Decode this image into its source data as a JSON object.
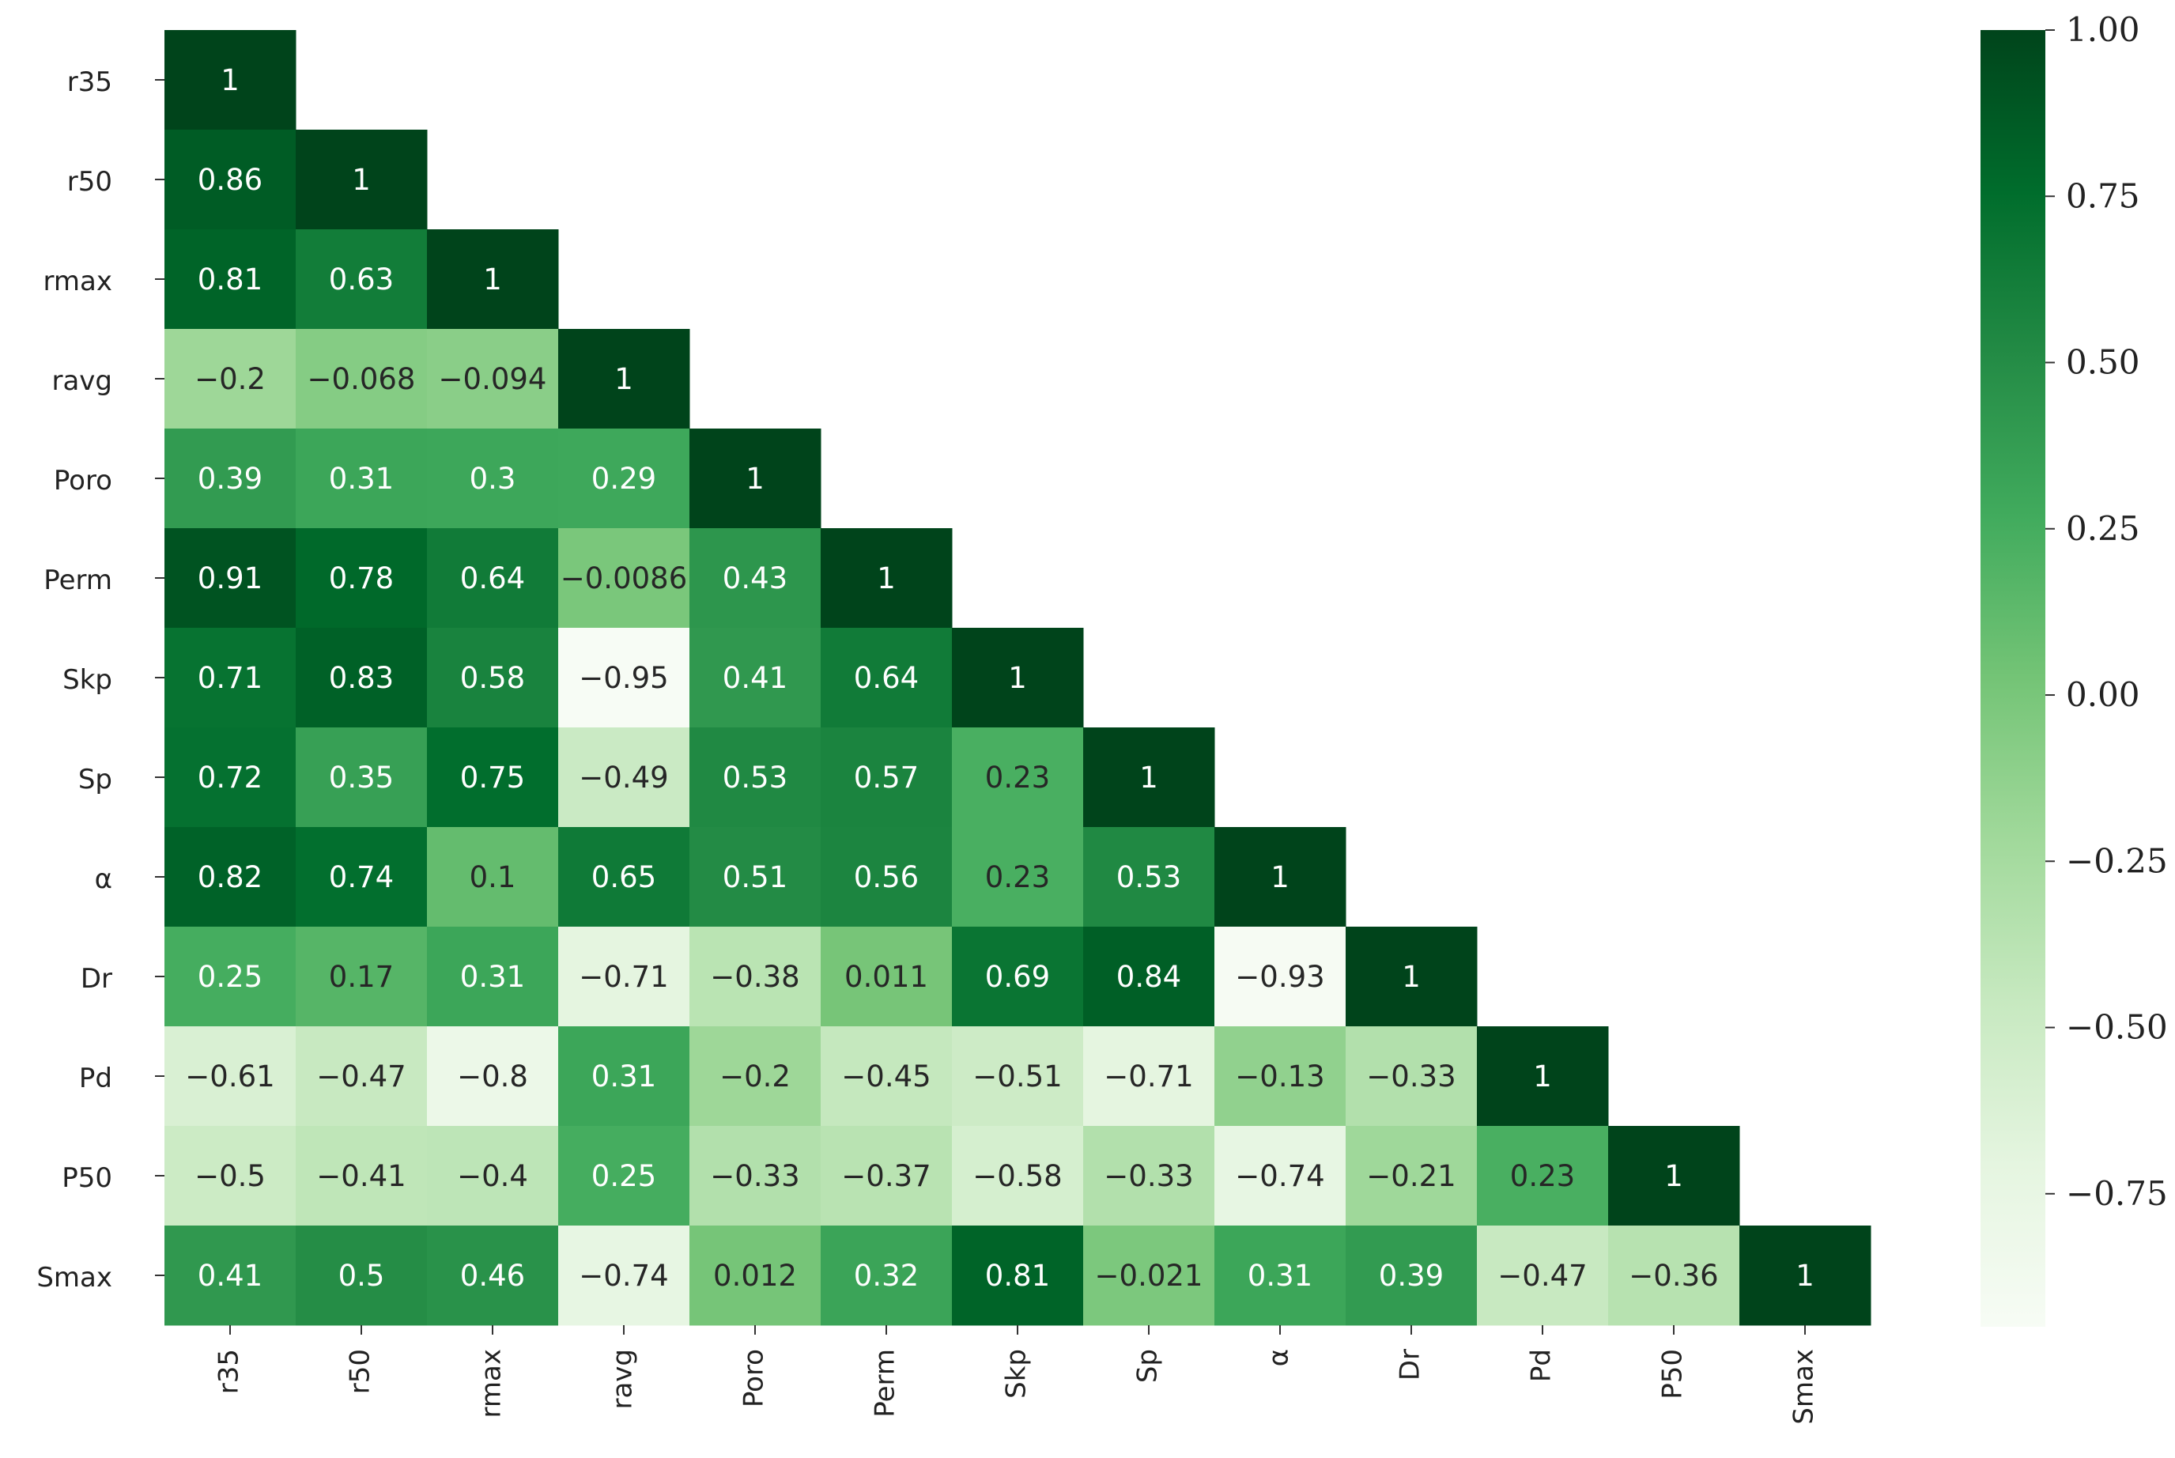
{
  "chart_data": {
    "type": "heatmap",
    "variables": [
      "r35",
      "r50",
      "rmax",
      "ravg",
      "Poro",
      "Perm",
      "Skp",
      "Sp",
      "α",
      "Dr",
      "Pd",
      "P50",
      "Smax"
    ],
    "value_labels": [
      [
        "1"
      ],
      [
        "0.86",
        "1"
      ],
      [
        "0.81",
        "0.63",
        "1"
      ],
      [
        "−0.2",
        "−0.068",
        "−0.094",
        "1"
      ],
      [
        "0.39",
        "0.31",
        "0.3",
        "0.29",
        "1"
      ],
      [
        "0.91",
        "0.78",
        "0.64",
        "−0.0086",
        "0.43",
        "1"
      ],
      [
        "0.71",
        "0.83",
        "0.58",
        "−0.95",
        "0.41",
        "0.64",
        "1"
      ],
      [
        "0.72",
        "0.35",
        "0.75",
        "−0.49",
        "0.53",
        "0.57",
        "0.23",
        "1"
      ],
      [
        "0.82",
        "0.74",
        "0.1",
        "0.65",
        "0.51",
        "0.56",
        "0.23",
        "0.53",
        "1"
      ],
      [
        "0.25",
        "0.17",
        "0.31",
        "−0.71",
        "−0.38",
        "0.011",
        "0.69",
        "0.84",
        "−0.93",
        "1"
      ],
      [
        "−0.61",
        "−0.47",
        "−0.8",
        "0.31",
        "−0.2",
        "−0.45",
        "−0.51",
        "−0.71",
        "−0.13",
        "−0.33",
        "1"
      ],
      [
        "−0.5",
        "−0.41",
        "−0.4",
        "0.25",
        "−0.33",
        "−0.37",
        "−0.58",
        "−0.33",
        "−0.74",
        "−0.21",
        "0.23",
        "1"
      ],
      [
        "0.41",
        "0.5",
        "0.46",
        "−0.74",
        "0.012",
        "0.32",
        "0.81",
        "−0.021",
        "0.31",
        "0.39",
        "−0.47",
        "−0.36",
        "1"
      ]
    ],
    "colorbar": {
      "range": [
        -0.95,
        1.0
      ],
      "ticks": [
        "1.00",
        "0.75",
        "0.50",
        "0.25",
        "0.00",
        "−0.25",
        "−0.50",
        "−0.75"
      ],
      "tick_values": [
        1.0,
        0.75,
        0.5,
        0.25,
        0.0,
        -0.25,
        -0.5,
        -0.75
      ],
      "colormap": "Greens",
      "low_color": "#f7fcf5",
      "high_color": "#00441b"
    },
    "annotation_colors": {
      "on_dark": "#ffffff",
      "on_light": "#262626"
    },
    "mask": "upper triangle hidden",
    "grid": false,
    "legend": "right colorbar"
  }
}
